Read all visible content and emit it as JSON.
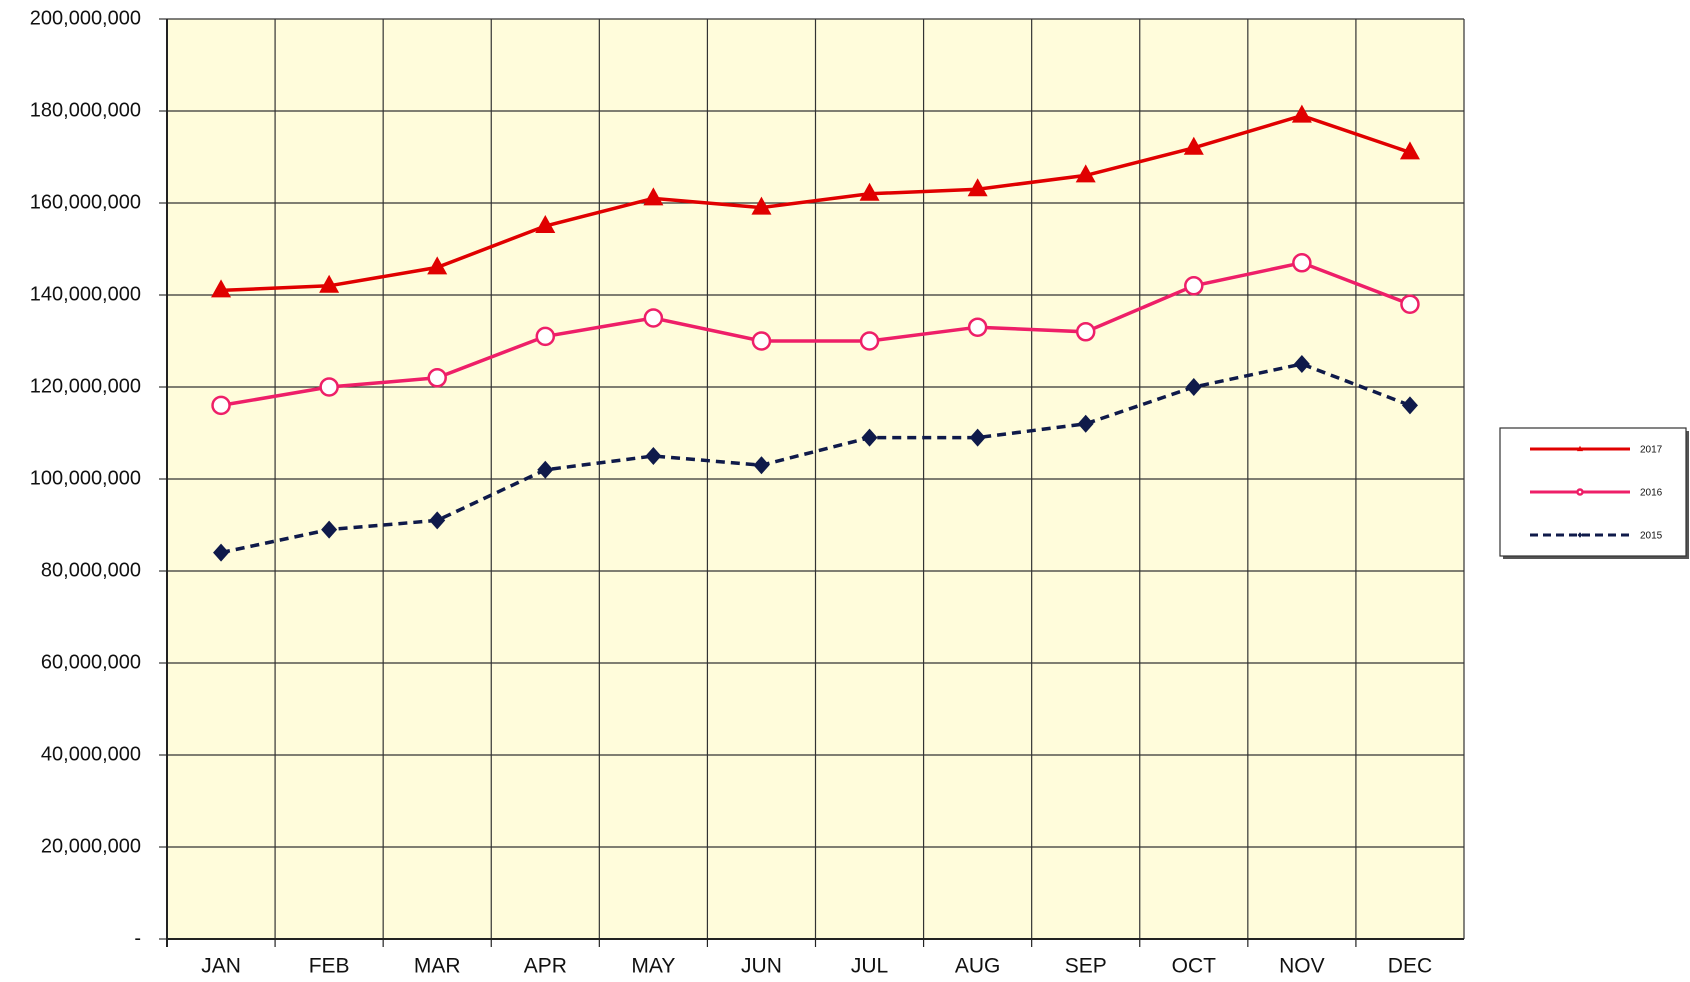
{
  "chart_data": {
    "type": "line",
    "categories": [
      "JAN",
      "FEB",
      "MAR",
      "APR",
      "MAY",
      "JUN",
      "JUL",
      "AUG",
      "SEP",
      "OCT",
      "NOV",
      "DEC"
    ],
    "series": [
      {
        "name": "2017",
        "color": "#e00000",
        "marker": "triangle",
        "dashed": false,
        "values": [
          141000000,
          142000000,
          146000000,
          155000000,
          161000000,
          159000000,
          162000000,
          163000000,
          166000000,
          172000000,
          179000000,
          171000000
        ]
      },
      {
        "name": "2016",
        "color": "#ee1f68",
        "marker": "open-circle",
        "dashed": false,
        "values": [
          116000000,
          120000000,
          122000000,
          131000000,
          135000000,
          130000000,
          130000000,
          133000000,
          132000000,
          142000000,
          147000000,
          138000000
        ]
      },
      {
        "name": "2015",
        "color": "#0f1a4a",
        "marker": "diamond",
        "dashed": true,
        "values": [
          84000000,
          89000000,
          91000000,
          102000000,
          105000000,
          103000000,
          109000000,
          109000000,
          112000000,
          120000000,
          125000000,
          116000000
        ]
      }
    ],
    "ylim": [
      0,
      200000000
    ],
    "yticks": [
      {
        "value": 0,
        "label": "-"
      },
      {
        "value": 20000000,
        "label": "20,000,000"
      },
      {
        "value": 40000000,
        "label": "40,000,000"
      },
      {
        "value": 60000000,
        "label": "60,000,000"
      },
      {
        "value": 80000000,
        "label": "80,000,000"
      },
      {
        "value": 100000000,
        "label": "100,000,000"
      },
      {
        "value": 120000000,
        "label": "120,000,000"
      },
      {
        "value": 140000000,
        "label": "140,000,000"
      },
      {
        "value": 160000000,
        "label": "160,000,000"
      },
      {
        "value": 180000000,
        "label": "180,000,000"
      },
      {
        "value": 200000000,
        "label": "200,000,000"
      }
    ],
    "grid": true,
    "legend": "right",
    "plot_background": "#fffcdb"
  }
}
